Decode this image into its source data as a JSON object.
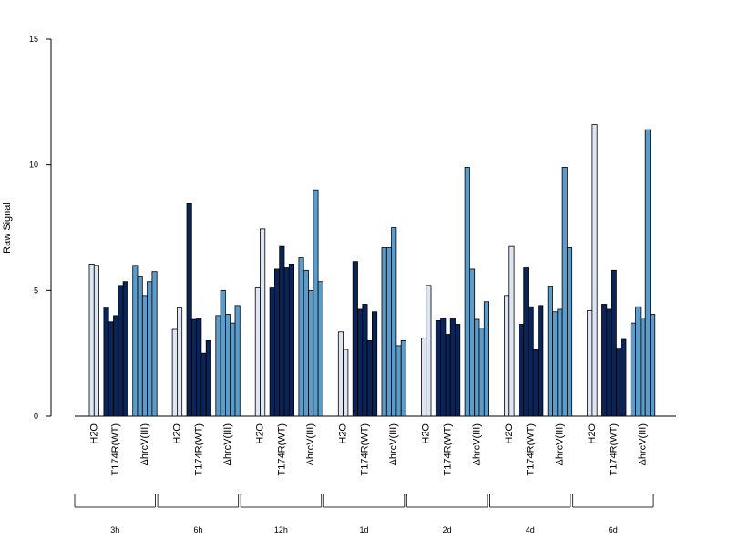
{
  "chart_data": {
    "type": "bar",
    "title": "",
    "xlabel": "",
    "ylabel": "Raw Signal",
    "ylim": [
      0,
      15
    ],
    "y_ticks": [
      0,
      5,
      10,
      15
    ],
    "grid": false,
    "colors": {
      "H2O": "#dde6f2",
      "T174R(WT)": "#0a2458",
      "ΔhrcV(III)": "#5c9ccb",
      "border": "#000000"
    },
    "groups": [
      {
        "label": "3h",
        "series": [
          {
            "treatment": "H2O",
            "values": [
              6.05,
              6.0
            ]
          },
          {
            "treatment": "T174R(WT)",
            "values": [
              4.3,
              3.75,
              4.0,
              5.2,
              5.35
            ]
          },
          {
            "treatment": "ΔhrcV(III)",
            "values": [
              6.0,
              5.55,
              4.8,
              5.35,
              5.75
            ]
          }
        ]
      },
      {
        "label": "6h",
        "series": [
          {
            "treatment": "H2O",
            "values": [
              3.45,
              4.3
            ]
          },
          {
            "treatment": "T174R(WT)",
            "values": [
              8.45,
              3.85,
              3.9,
              2.5,
              3.0
            ]
          },
          {
            "treatment": "ΔhrcV(III)",
            "values": [
              4.0,
              5.0,
              4.05,
              3.7,
              4.4
            ]
          }
        ]
      },
      {
        "label": "12h",
        "series": [
          {
            "treatment": "H2O",
            "values": [
              5.1,
              7.45
            ]
          },
          {
            "treatment": "T174R(WT)",
            "values": [
              5.1,
              5.85,
              6.75,
              5.9,
              6.05
            ]
          },
          {
            "treatment": "ΔhrcV(III)",
            "values": [
              6.3,
              5.8,
              5.0,
              9.0,
              5.35
            ]
          }
        ]
      },
      {
        "label": "1d",
        "series": [
          {
            "treatment": "H2O",
            "values": [
              3.35,
              2.65
            ]
          },
          {
            "treatment": "T174R(WT)",
            "values": [
              6.15,
              4.25,
              4.45,
              3.0,
              4.15
            ]
          },
          {
            "treatment": "ΔhrcV(III)",
            "values": [
              6.7,
              6.7,
              7.5,
              2.8,
              3.0
            ]
          }
        ]
      },
      {
        "label": "2d",
        "series": [
          {
            "treatment": "H2O",
            "values": [
              3.1,
              5.2
            ]
          },
          {
            "treatment": "T174R(WT)",
            "values": [
              3.8,
              3.9,
              3.25,
              3.9,
              3.65
            ]
          },
          {
            "treatment": "ΔhrcV(III)",
            "values": [
              9.9,
              5.85,
              3.85,
              3.5,
              4.55
            ]
          }
        ]
      },
      {
        "label": "4d",
        "series": [
          {
            "treatment": "H2O",
            "values": [
              4.8,
              6.75
            ]
          },
          {
            "treatment": "T174R(WT)",
            "values": [
              3.65,
              5.9,
              4.35,
              2.65,
              4.4
            ]
          },
          {
            "treatment": "ΔhrcV(III)",
            "values": [
              5.15,
              4.15,
              4.25,
              9.9,
              6.7
            ]
          }
        ]
      },
      {
        "label": "6d",
        "series": [
          {
            "treatment": "H2O",
            "values": [
              4.2,
              11.6
            ]
          },
          {
            "treatment": "T174R(WT)",
            "values": [
              4.45,
              4.25,
              5.8,
              2.7,
              3.05
            ]
          },
          {
            "treatment": "ΔhrcV(III)",
            "values": [
              3.7,
              4.35,
              3.9,
              11.4,
              4.05
            ]
          }
        ]
      }
    ]
  }
}
